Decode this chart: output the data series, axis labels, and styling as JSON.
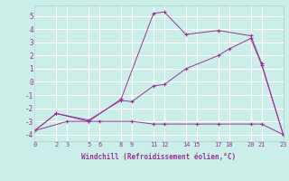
{
  "xlabel": "Windchill (Refroidissement éolien,°C)",
  "background_color": "#cceee8",
  "grid_color": "#ffffff",
  "line_color": "#993399",
  "xlim": [
    0,
    23
  ],
  "ylim": [
    -4.5,
    5.8
  ],
  "xticks": [
    0,
    2,
    3,
    5,
    6,
    8,
    9,
    11,
    12,
    14,
    15,
    17,
    18,
    20,
    21,
    23
  ],
  "xtick_labels": [
    "0",
    "2",
    "3",
    "5",
    "6",
    "8",
    "9",
    "11",
    "12",
    "14",
    "15",
    "17",
    "18",
    "20",
    "21",
    "23"
  ],
  "yticks": [
    -4,
    -3,
    -2,
    -1,
    0,
    1,
    2,
    3,
    4,
    5
  ],
  "series": [
    {
      "x": [
        0,
        2,
        5,
        8,
        11,
        12,
        14,
        17,
        20,
        21,
        23
      ],
      "y": [
        -3.7,
        -2.4,
        -3.0,
        -1.3,
        5.2,
        5.3,
        3.6,
        3.9,
        3.5,
        1.4,
        -4.0
      ]
    },
    {
      "x": [
        0,
        3,
        5,
        6,
        9,
        11,
        12,
        15,
        17,
        20,
        21,
        23
      ],
      "y": [
        -3.7,
        -3.0,
        -3.0,
        -3.0,
        -3.0,
        -3.2,
        -3.2,
        -3.2,
        -3.2,
        -3.2,
        -3.2,
        -4.0
      ]
    },
    {
      "x": [
        0,
        2,
        5,
        8,
        9,
        11,
        12,
        14,
        17,
        18,
        20,
        21,
        23
      ],
      "y": [
        -3.7,
        -2.4,
        -2.9,
        -1.4,
        -1.5,
        -0.3,
        -0.2,
        1.0,
        2.0,
        2.5,
        3.3,
        1.3,
        -4.0
      ]
    }
  ]
}
